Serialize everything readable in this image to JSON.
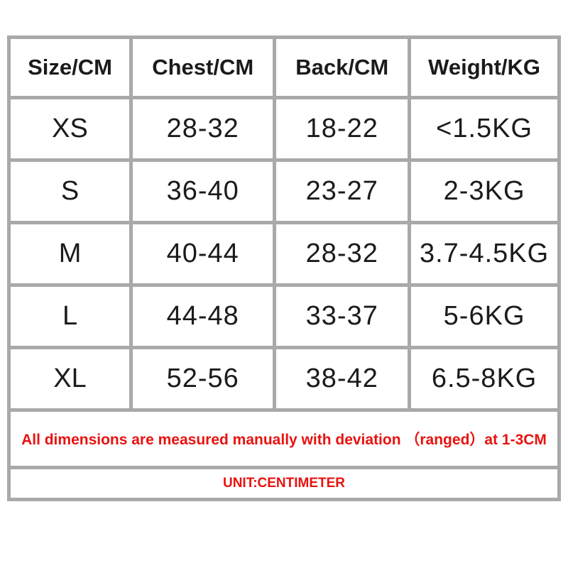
{
  "chart_data": {
    "type": "table",
    "columns": [
      "Size/CM",
      "Chest/CM",
      "Back/CM",
      "Weight/KG"
    ],
    "rows": [
      [
        "XS",
        "28-32",
        "18-22",
        "<1.5KG"
      ],
      [
        "S",
        "36-40",
        "23-27",
        "2-3KG"
      ],
      [
        "M",
        "40-44",
        "28-32",
        "3.7-4.5KG"
      ],
      [
        "L",
        "44-48",
        "33-37",
        "5-6KG"
      ],
      [
        "XL",
        "52-56",
        "38-42",
        "6.5-8KG"
      ]
    ],
    "footer_note": "All dimensions are measured manually with deviation （ranged）at 1-3CM",
    "unit_label": "UNIT:CENTIMETER",
    "layout_hints": {
      "grid": "on",
      "header_position": "top",
      "row_label_column": "left"
    }
  },
  "colors": {
    "value_cell_bg": "#7d7d7d",
    "border_gray": "#a9a9a9",
    "note_red": "#e8120f",
    "text_black": "#1b1b1b",
    "page_bg": "#ffffff"
  }
}
